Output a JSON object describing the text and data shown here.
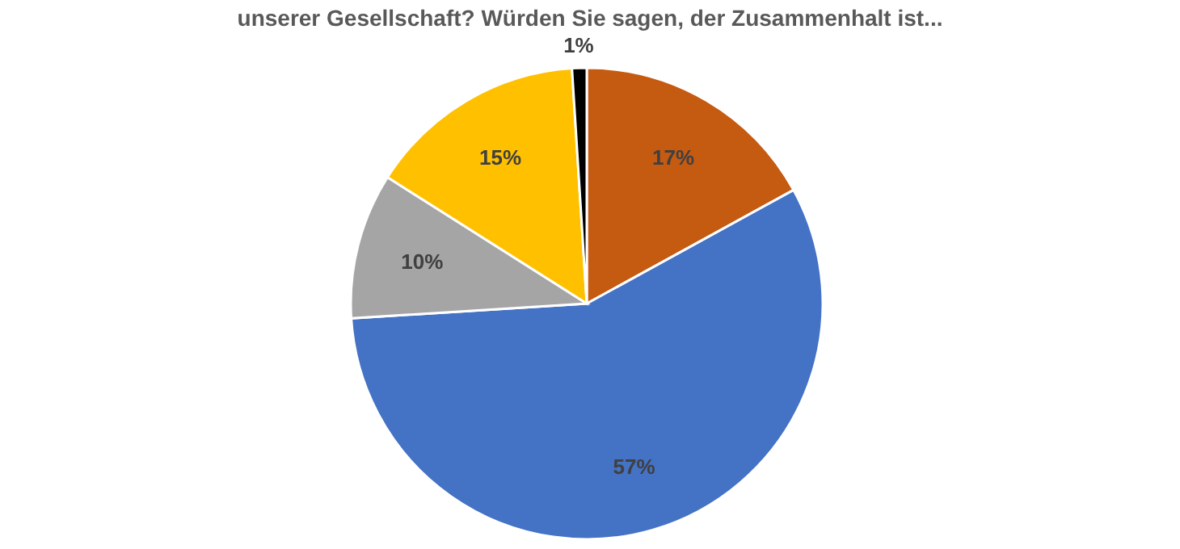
{
  "chart_data": {
    "type": "pie",
    "title": "unserer Gesellschaft? Würden Sie sagen, der Zusammenhalt ist...",
    "categories": [
      null,
      null,
      null,
      null,
      null
    ],
    "values": [
      17,
      57,
      10,
      15,
      1
    ],
    "colors": [
      "#c55a11",
      "#4472c4",
      "#a5a5a5",
      "#ffc000",
      "#000000"
    ],
    "value_labels": [
      "17%",
      "57%",
      "10%",
      "15%",
      "1%"
    ]
  }
}
